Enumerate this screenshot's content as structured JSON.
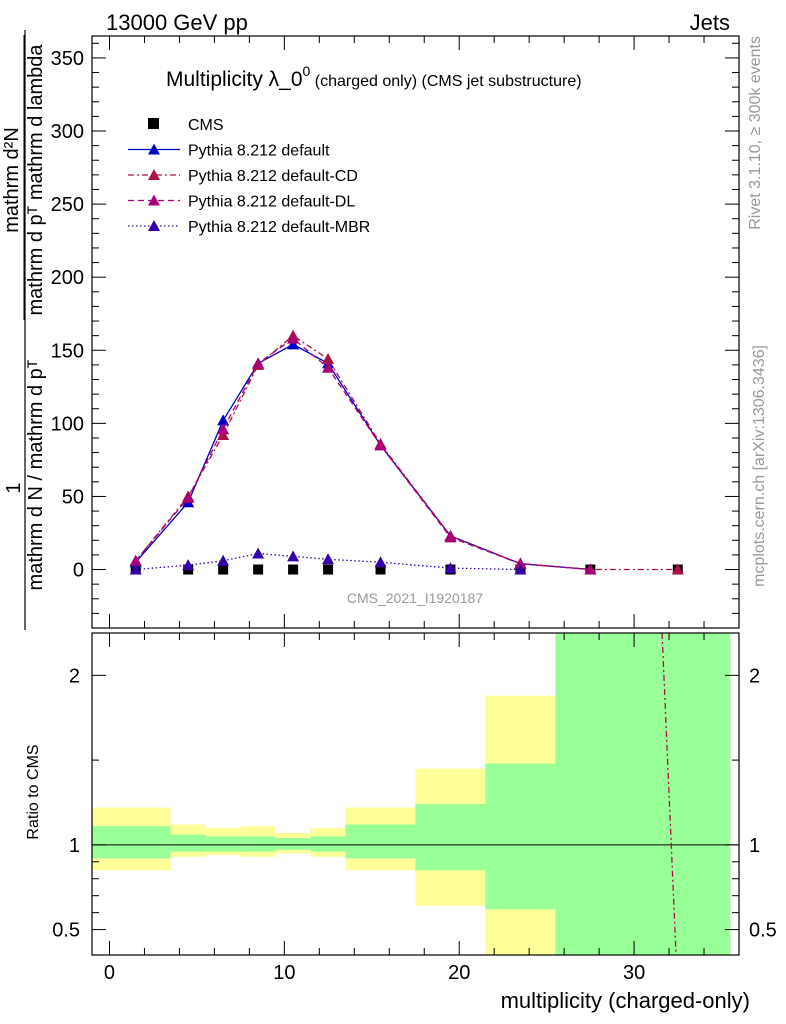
{
  "header": {
    "left": "13000 GeV pp",
    "right": "Jets"
  },
  "side_labels": {
    "rivet": "Rivet 3.1.10, ≥ 300k events",
    "mcplots": "mcplots.cern.ch [arXiv:1306.3436]"
  },
  "colors": {
    "cms": "#000000",
    "default": "#0000cc",
    "cd": "#aa1144",
    "dl": "#aa0077",
    "mbr": "#3300aa",
    "band_inner": "#99ff99",
    "band_outer": "#ffff99",
    "ratio_cd": "#aa1144"
  },
  "chart_data": [
    {
      "id": "main",
      "type": "line",
      "title_main": "Multiplicity λ_0",
      "title_sup": "0",
      "title_small": " (charged only) (CMS jet substructure)",
      "ylabel_numer": "mathrm d²N",
      "ylabel_denom": "mathrm d pᵀ mathrm d lambda",
      "ylabel_one": "1",
      "ylabel_bottom": "mathrm d N / mathrm d pᵀ",
      "watermark": "CMS_2021_I1920187",
      "xlim": [
        -1,
        36
      ],
      "ylim": [
        -40,
        365
      ],
      "yticks": [
        0,
        50,
        100,
        150,
        200,
        250,
        300,
        350
      ],
      "series": [
        {
          "name": "CMS",
          "key": "cms",
          "style": "square",
          "x": [
            1.5,
            4.5,
            6.5,
            8.5,
            10.5,
            12.5,
            15.5,
            19.5,
            23.5,
            27.5,
            32.5
          ],
          "y": [
            0,
            0,
            0,
            0,
            0,
            0,
            0,
            0,
            0,
            0,
            0
          ]
        },
        {
          "name": "Pythia 8.212 default",
          "key": "default",
          "style": "solid",
          "x": [
            1.5,
            4.5,
            6.5,
            8.5,
            10.5,
            12.5,
            15.5,
            19.5,
            23.5,
            27.5
          ],
          "y": [
            5,
            46,
            102,
            141,
            154,
            141,
            85,
            23,
            4,
            0
          ]
        },
        {
          "name": "Pythia 8.212 default-CD",
          "key": "cd",
          "style": "dashdot",
          "x": [
            1.5,
            4.5,
            6.5,
            8.5,
            10.5,
            12.5,
            15.5,
            19.5,
            23.5,
            27.5,
            32.5
          ],
          "y": [
            6,
            50,
            92,
            140,
            160,
            144,
            86,
            23,
            4,
            0,
            0
          ]
        },
        {
          "name": "Pythia 8.212 default-DL",
          "key": "dl",
          "style": "dashed",
          "x": [
            1.5,
            4.5,
            6.5,
            8.5,
            10.5,
            12.5,
            15.5,
            19.5,
            23.5,
            27.5
          ],
          "y": [
            6,
            49,
            96,
            141,
            158,
            138,
            85,
            22,
            4,
            0
          ]
        },
        {
          "name": "Pythia 8.212 default-MBR",
          "key": "mbr",
          "style": "dotted",
          "x": [
            1.5,
            4.5,
            6.5,
            8.5,
            10.5,
            12.5,
            15.5,
            19.5,
            23.5
          ],
          "y": [
            0,
            3,
            6,
            11,
            9,
            7,
            5,
            1,
            0
          ]
        }
      ]
    },
    {
      "id": "ratio",
      "type": "area",
      "ylabel": "Ratio to CMS",
      "xlabel": "multiplicity (charged-only)",
      "xlim": [
        -1,
        36
      ],
      "ylim": [
        0.35,
        2.25
      ],
      "yticks": [
        0.5,
        1,
        2
      ],
      "xticks": [
        0,
        10,
        20,
        30
      ],
      "bins": [
        {
          "lo": -1,
          "hi": 3.5,
          "inner": [
            0.92,
            1.11
          ],
          "outer": [
            0.85,
            1.22
          ]
        },
        {
          "lo": 3.5,
          "hi": 5.5,
          "inner": [
            0.96,
            1.06
          ],
          "outer": [
            0.93,
            1.12
          ]
        },
        {
          "lo": 5.5,
          "hi": 7.5,
          "inner": [
            0.96,
            1.05
          ],
          "outer": [
            0.94,
            1.1
          ]
        },
        {
          "lo": 7.5,
          "hi": 9.5,
          "inner": [
            0.96,
            1.05
          ],
          "outer": [
            0.93,
            1.11
          ]
        },
        {
          "lo": 9.5,
          "hi": 11.5,
          "inner": [
            0.97,
            1.04
          ],
          "outer": [
            0.95,
            1.07
          ]
        },
        {
          "lo": 11.5,
          "hi": 13.5,
          "inner": [
            0.96,
            1.05
          ],
          "outer": [
            0.93,
            1.1
          ]
        },
        {
          "lo": 13.5,
          "hi": 17.5,
          "inner": [
            0.92,
            1.12
          ],
          "outer": [
            0.85,
            1.22
          ]
        },
        {
          "lo": 17.5,
          "hi": 21.5,
          "inner": [
            0.85,
            1.24
          ],
          "outer": [
            0.64,
            1.45
          ]
        },
        {
          "lo": 21.5,
          "hi": 25.5,
          "inner": [
            0.62,
            1.48
          ],
          "outer": [
            0.35,
            1.88
          ]
        },
        {
          "lo": 25.5,
          "hi": 35.5,
          "inner": [
            0.35,
            2.25
          ],
          "outer": [
            0.35,
            2.25
          ]
        }
      ],
      "series": [
        {
          "name": "Pythia 8.212 default-CD",
          "key": "ratio_cd",
          "x": [
            31.6,
            32.4
          ],
          "y": [
            2.25,
            0.35
          ]
        }
      ]
    }
  ]
}
